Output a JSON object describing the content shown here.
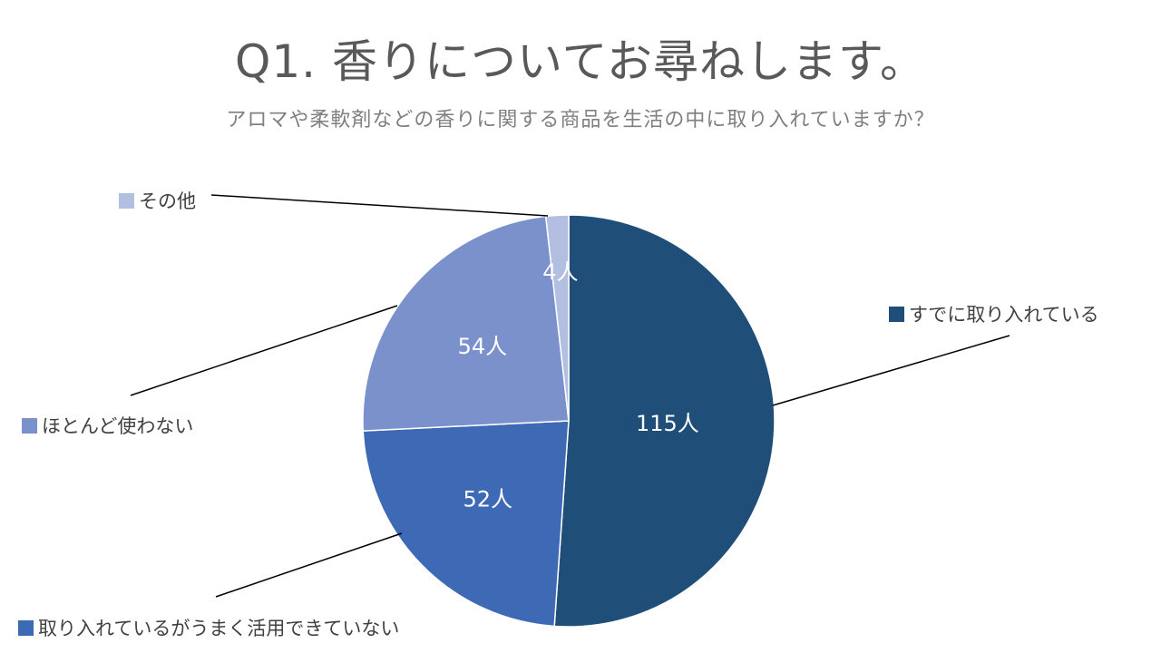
{
  "chart_data": {
    "type": "pie",
    "title": "Q1. 香りについてお尋ねします。",
    "subtitle": "アロマや柔軟剤などの香りに関する商品を生活の中に取り入れていますか？",
    "slices": [
      {
        "label": "すでに取り入れている",
        "value": 115,
        "data_label": "115人",
        "color": "#1f4e79"
      },
      {
        "label": "取り入れているがうまく活用できていない",
        "value": 52,
        "data_label": "52人",
        "color": "#3d69b5"
      },
      {
        "label": "ほとんど使わない",
        "value": 54,
        "data_label": "54人",
        "color": "#7a91cc"
      },
      {
        "label": "その他",
        "value": 4,
        "data_label": "4人",
        "color": "#b3bfe0"
      }
    ]
  }
}
